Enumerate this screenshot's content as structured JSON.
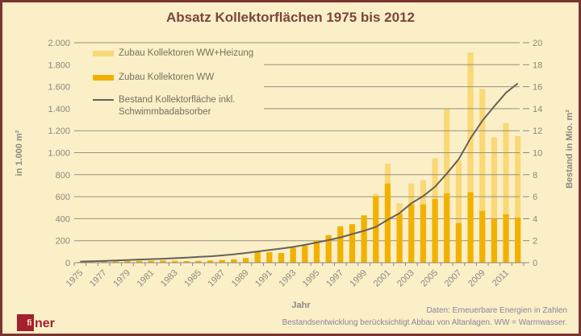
{
  "title": "Absatz Kollektorflächen 1975 bis 2012",
  "colors": {
    "background": "#FAEFC6",
    "border": "#7C3431",
    "title": "#7A453E",
    "bar_light": "#F9D875",
    "bar_orange": "#F2B100",
    "line": "#66615A",
    "grid": "#97907F",
    "axis_text": "#8C8880",
    "legend_text": "#75705F",
    "footer_text": "#8585A0",
    "logo_red": "#A51F2E"
  },
  "legend": [
    {
      "label": "Zubau Kollektoren WW+Heizung"
    },
    {
      "label": "Zubau Kollektoren WW"
    },
    {
      "label_line1": "Bestand Kollektorfläche inkl.",
      "label_line2": "Schwimmbadabsorber"
    }
  ],
  "chart_data": {
    "type": "bar+line",
    "x": [
      1975,
      1976,
      1977,
      1978,
      1979,
      1980,
      1981,
      1982,
      1983,
      1984,
      1985,
      1986,
      1987,
      1988,
      1989,
      1990,
      1991,
      1992,
      1993,
      1994,
      1995,
      1996,
      1997,
      1998,
      1999,
      2000,
      2001,
      2002,
      2003,
      2004,
      2005,
      2006,
      2007,
      2008,
      2009,
      2010,
      2011,
      2012
    ],
    "series": [
      {
        "name": "Zubau Kollektoren WW+Heizung",
        "type": "bar",
        "axis": "left",
        "unit": "1.000 m²",
        "values": [
          6,
          8,
          10,
          12,
          14,
          16,
          18,
          20,
          25,
          15,
          16,
          20,
          24,
          30,
          42,
          100,
          95,
          88,
          135,
          155,
          200,
          250,
          330,
          350,
          430,
          625,
          900,
          540,
          720,
          750,
          950,
          1400,
          930,
          1910,
          1580,
          1140,
          1270,
          1150
        ]
      },
      {
        "name": "Zubau Kollektoren WW",
        "type": "bar",
        "axis": "left",
        "unit": "1.000 m²",
        "values": [
          6,
          8,
          10,
          12,
          14,
          16,
          18,
          20,
          12,
          15,
          16,
          20,
          24,
          30,
          42,
          100,
          95,
          88,
          135,
          155,
          200,
          250,
          330,
          350,
          430,
          605,
          720,
          445,
          530,
          530,
          580,
          630,
          360,
          640,
          470,
          400,
          440,
          410
        ]
      },
      {
        "name": "Bestand Kollektorfläche inkl. Schwimmbadabsorber",
        "type": "line",
        "axis": "right",
        "unit": "Mio. m²",
        "values": [
          0.1,
          0.13,
          0.16,
          0.2,
          0.24,
          0.28,
          0.32,
          0.36,
          0.41,
          0.46,
          0.52,
          0.58,
          0.66,
          0.76,
          0.88,
          1.02,
          1.15,
          1.28,
          1.43,
          1.62,
          1.83,
          2.05,
          2.3,
          2.6,
          2.9,
          3.25,
          3.9,
          4.5,
          5.4,
          6.05,
          6.9,
          8.1,
          9.4,
          11.3,
          12.9,
          14.2,
          15.45,
          16.3
        ]
      }
    ],
    "left_axis": {
      "label": "in 1.000 m²",
      "min": 0,
      "max": 2000,
      "step": 200
    },
    "right_axis": {
      "label": "Bestand in Mio. m²",
      "min": 0,
      "max": 20,
      "step": 2
    },
    "x_axis": {
      "label": "Jahr",
      "tick_label_every": 2
    },
    "grid": true,
    "legend_position": "top-left"
  },
  "footer": {
    "source_line1": "Daten: Erneuerbare Energien in Zahlen",
    "source_line2": "Bestandsentwicklung berücksichtigt Abbau von Altanlagen. WW = Warmwasser.",
    "logo_text": "ner",
    "logo_fi": "fi"
  }
}
